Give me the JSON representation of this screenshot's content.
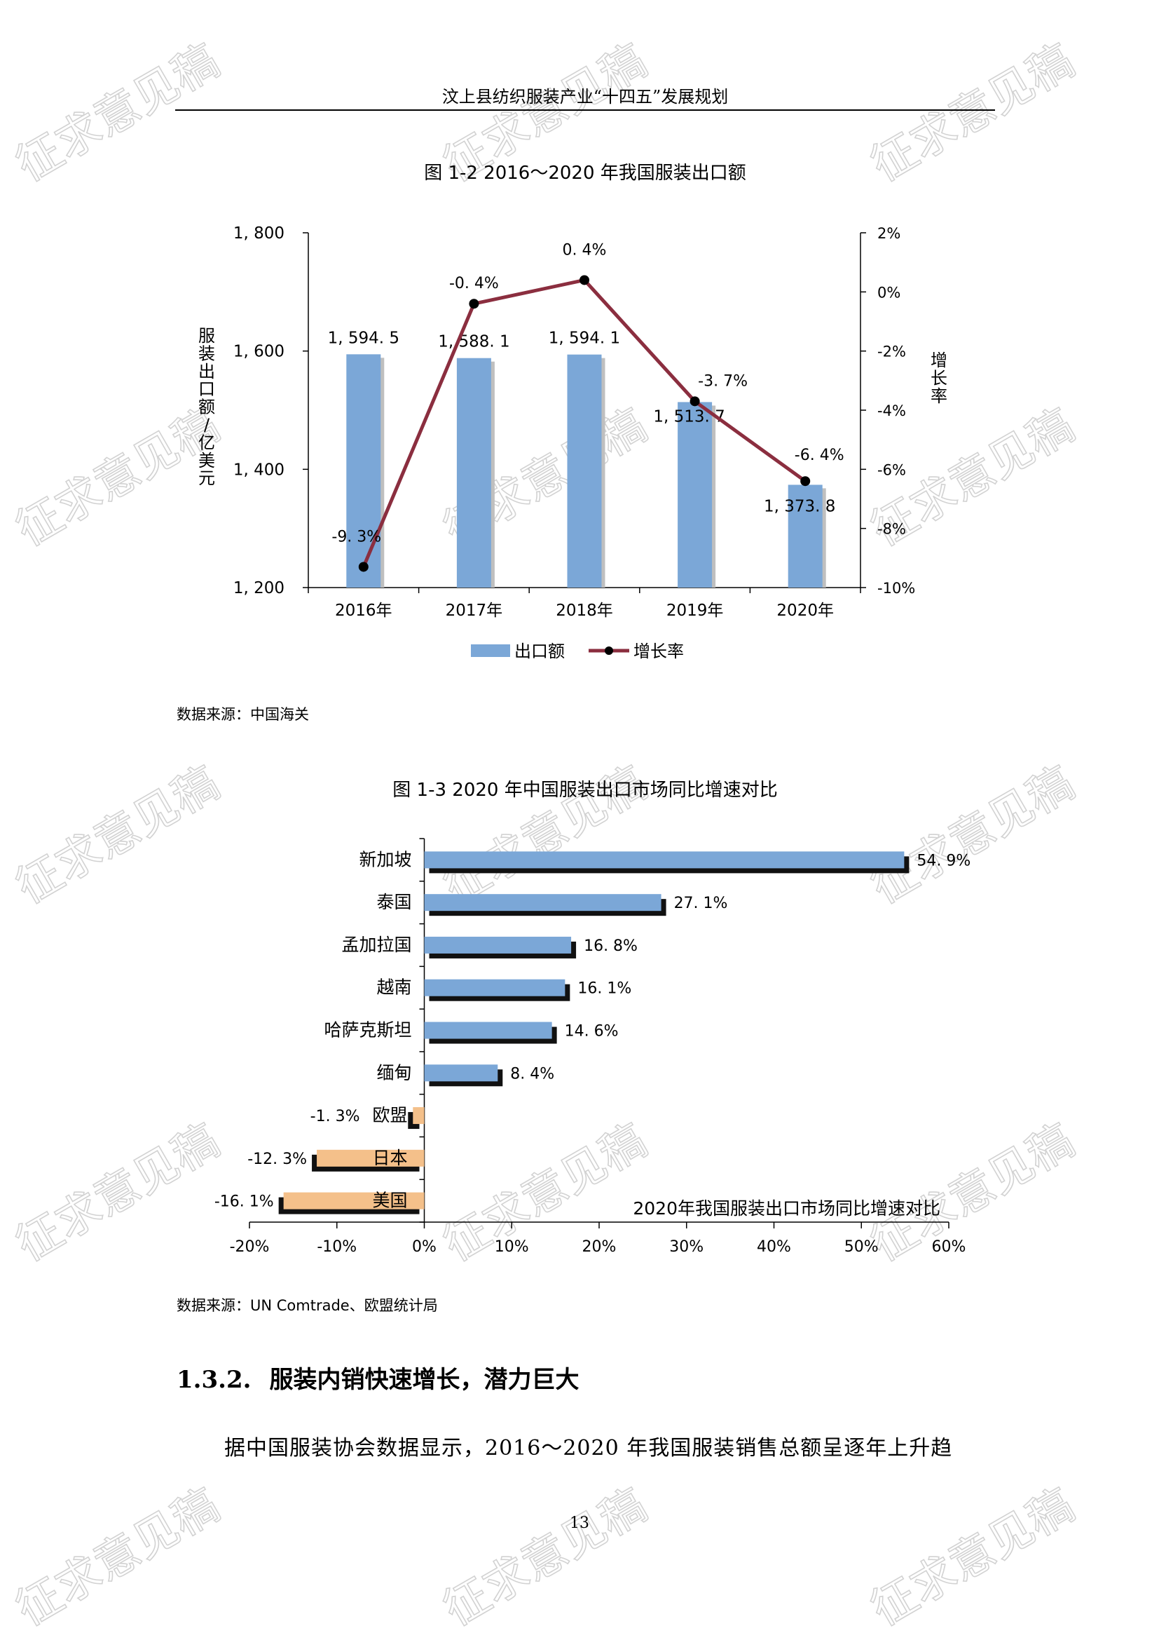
{
  "header": {
    "title": "汶上县纺织服装产业“十四五”发展规划"
  },
  "watermark": {
    "text": "征求意见稿"
  },
  "figure1": {
    "title": "图 1-2 2016～2020 年我国服装出口额",
    "source": "数据来源：中国海关",
    "legend": {
      "bar": "出口额",
      "line": "增长率"
    },
    "y_left_label": "服装出口额/亿美元",
    "y_right_label": "增长率",
    "colors": {
      "bar": "#7ba7d7",
      "line": "#8b2e3f",
      "point": "#000000"
    },
    "chart_data": {
      "type": "bar",
      "categories": [
        "2016年",
        "2017年",
        "2018年",
        "2019年",
        "2020年"
      ],
      "series": [
        {
          "name": "出口额",
          "axis": "left",
          "values": [
            1594.5,
            1588.1,
            1594.1,
            1513.7,
            1373.8
          ],
          "labels": [
            "1, 594. 5",
            "1, 588. 1",
            "1, 594. 1",
            "1, 513. 7",
            "1, 373. 8"
          ]
        },
        {
          "name": "增长率",
          "axis": "right",
          "type": "line",
          "values": [
            -9.3,
            -0.4,
            0.4,
            -3.7,
            -6.4
          ],
          "labels": [
            "-9. 3%",
            "-0. 4%",
            "0. 4%",
            "-3. 7%",
            "-6. 4%"
          ]
        }
      ],
      "ylim_left": [
        1200,
        1800
      ],
      "yticks_left": [
        "1, 200",
        "1, 400",
        "1, 600",
        "1, 800"
      ],
      "ylim_right": [
        -10,
        2
      ],
      "yticks_right": [
        "-10%",
        "-8%",
        "-6%",
        "-4%",
        "-2%",
        "0%",
        "2%"
      ],
      "legend_position": "bottom"
    }
  },
  "figure2": {
    "title": "图 1-3 2020 年中国服装出口市场同比增速对比",
    "source": "数据来源：UN Comtrade、欧盟统计局",
    "inner_title": "2020年我国服装出口市场同比增速对比",
    "colors": {
      "positive": "#7ba7d7",
      "negative": "#f4c08a",
      "shadow": "#111111"
    },
    "chart_data": {
      "type": "bar",
      "orientation": "horizontal",
      "categories": [
        "新加坡",
        "泰国",
        "孟加拉国",
        "越南",
        "哈萨克斯坦",
        "缅甸",
        "欧盟",
        "日本",
        "美国"
      ],
      "values": [
        54.9,
        27.1,
        16.8,
        16.1,
        14.6,
        8.4,
        -1.3,
        -12.3,
        -16.1
      ],
      "labels": [
        "54. 9%",
        "27. 1%",
        "16. 8%",
        "16. 1%",
        "14. 6%",
        "8. 4%",
        "-1. 3%",
        "-12. 3%",
        "-16. 1%"
      ],
      "xlim": [
        -20,
        60
      ],
      "xticks": [
        "-20%",
        "-10%",
        "0%",
        "10%",
        "20%",
        "30%",
        "40%",
        "50%",
        "60%"
      ]
    }
  },
  "section": {
    "number": "1.3.2.",
    "title": "服装内销快速增长，潜力巨大"
  },
  "paragraph": "据中国服装协会数据显示，2016～2020 年我国服装销售总额呈逐年上升趋",
  "page_number": "13"
}
